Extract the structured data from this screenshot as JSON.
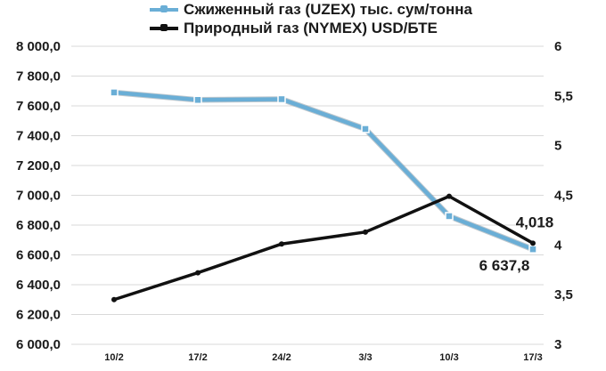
{
  "chart_data": {
    "type": "line",
    "categories": [
      "10/2",
      "17/2",
      "24/2",
      "3/3",
      "10/3",
      "17/3"
    ],
    "series": [
      {
        "name": "Сжиженный газ (UZEX) тыс. сум/тонна",
        "axis": "left",
        "color": "#6aaed6",
        "values": [
          7690,
          7640,
          7645,
          7445,
          6860,
          6637.8
        ]
      },
      {
        "name": "Природный газ (NYMEX) USD/БТЕ",
        "axis": "right",
        "color": "#111111",
        "values": [
          3.45,
          3.72,
          4.01,
          4.13,
          4.49,
          4.018
        ]
      }
    ],
    "left_axis": {
      "ylim": [
        6000,
        8000
      ],
      "ticks": [
        "6 000,0",
        "6 200,0",
        "6 400,0",
        "6 600,0",
        "6 800,0",
        "7 000,0",
        "7 200,0",
        "7 400,0",
        "7 600,0",
        "7 800,0",
        "8 000,0"
      ]
    },
    "right_axis": {
      "ylim": [
        3,
        6
      ],
      "ticks": [
        "3",
        "3,5",
        "4",
        "4,5",
        "5",
        "5,5",
        "6"
      ]
    },
    "data_labels": [
      {
        "series": 0,
        "point": 5,
        "text": "6 637,8"
      },
      {
        "series": 1,
        "point": 5,
        "text": "4,018"
      }
    ],
    "grid": "horizontal",
    "legend_position": "top"
  }
}
